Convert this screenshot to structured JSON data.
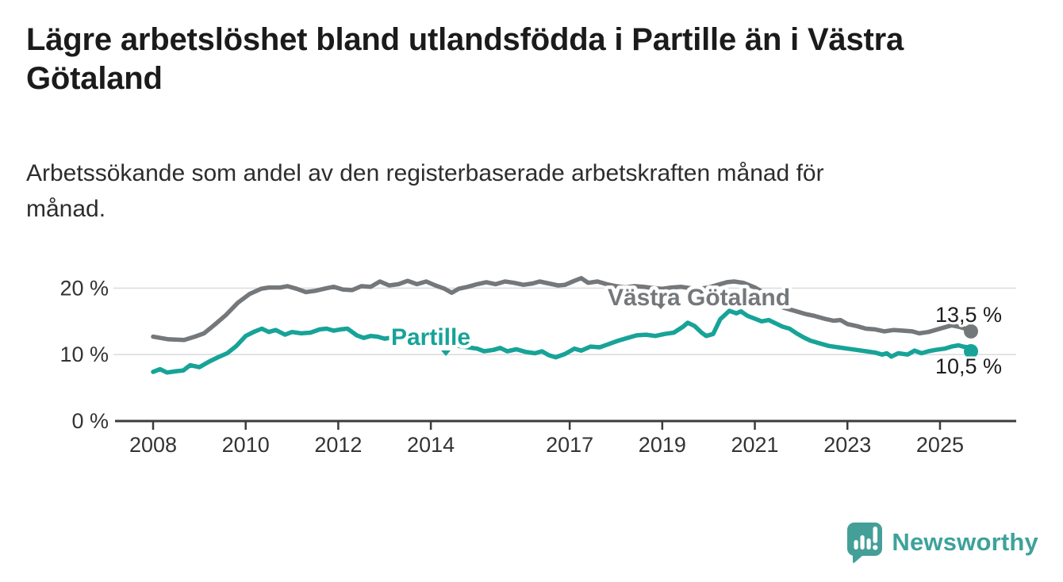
{
  "header": {
    "title": "Lägre arbetslöshet bland utlandsfödda i Partille än i Västra Götaland",
    "subtitle": "Arbetssökande som andel av den registerbaserade arbetskraften månad för månad."
  },
  "chart_data": {
    "type": "line",
    "title": "Lägre arbetslöshet bland utlandsfödda i Partille än i Västra Götaland",
    "subtitle": "Arbetssökande som andel av den registerbaserade arbetskraften månad för månad.",
    "unit": "%",
    "x_range": [
      2008,
      2025.67
    ],
    "ylim": [
      0,
      24
    ],
    "grid_on": true,
    "grid_values": [
      10,
      20
    ],
    "x_ticks": [
      "2008",
      "2010",
      "2012",
      "2014",
      "2017",
      "2019",
      "2021",
      "2023",
      "2025"
    ],
    "x_tick_years": [
      2008,
      2010,
      2012,
      2014,
      2017,
      2019,
      2021,
      2023,
      2025
    ],
    "y_ticks": [
      {
        "label": "20 %",
        "value": 20
      },
      {
        "label": "10 %",
        "value": 10
      },
      {
        "label": "0 %",
        "value": 0
      }
    ],
    "axis_color": "#3b3c3e",
    "grid_color": "#dedede",
    "tick_label_color": "#333333",
    "legend_position": "inline-labels",
    "series": [
      {
        "id": "vastra-gotaland",
        "name": "Västra Götaland",
        "color": "#75787b",
        "end_label": "13,5 %",
        "end_value": 13.5,
        "points": [
          [
            2008.0,
            12.7
          ],
          [
            2008.33,
            12.3
          ],
          [
            2008.67,
            12.2
          ],
          [
            2008.9,
            12.7
          ],
          [
            2009.1,
            13.2
          ],
          [
            2009.33,
            14.5
          ],
          [
            2009.58,
            16.0
          ],
          [
            2009.83,
            17.8
          ],
          [
            2010.08,
            19.1
          ],
          [
            2010.33,
            19.9
          ],
          [
            2010.5,
            20.1
          ],
          [
            2010.75,
            20.1
          ],
          [
            2010.9,
            20.3
          ],
          [
            2011.1,
            19.9
          ],
          [
            2011.3,
            19.4
          ],
          [
            2011.5,
            19.6
          ],
          [
            2011.75,
            20.0
          ],
          [
            2011.9,
            20.2
          ],
          [
            2012.1,
            19.8
          ],
          [
            2012.3,
            19.7
          ],
          [
            2012.5,
            20.3
          ],
          [
            2012.7,
            20.2
          ],
          [
            2012.9,
            21.0
          ],
          [
            2013.1,
            20.4
          ],
          [
            2013.3,
            20.6
          ],
          [
            2013.5,
            21.1
          ],
          [
            2013.7,
            20.6
          ],
          [
            2013.9,
            21.0
          ],
          [
            2014.1,
            20.4
          ],
          [
            2014.3,
            19.9
          ],
          [
            2014.45,
            19.3
          ],
          [
            2014.6,
            19.9
          ],
          [
            2014.8,
            20.2
          ],
          [
            2015.0,
            20.6
          ],
          [
            2015.2,
            20.9
          ],
          [
            2015.4,
            20.6
          ],
          [
            2015.6,
            21.0
          ],
          [
            2015.8,
            20.8
          ],
          [
            2016.0,
            20.5
          ],
          [
            2016.2,
            20.7
          ],
          [
            2016.35,
            21.0
          ],
          [
            2016.55,
            20.7
          ],
          [
            2016.75,
            20.4
          ],
          [
            2016.9,
            20.5
          ],
          [
            2017.1,
            21.1
          ],
          [
            2017.25,
            21.5
          ],
          [
            2017.4,
            20.8
          ],
          [
            2017.6,
            21.0
          ],
          [
            2017.8,
            20.6
          ],
          [
            2018.0,
            20.3
          ],
          [
            2018.2,
            20.1
          ],
          [
            2018.4,
            20.3
          ],
          [
            2018.6,
            20.2
          ],
          [
            2018.8,
            20.0
          ],
          [
            2019.0,
            19.9
          ],
          [
            2019.2,
            20.1
          ],
          [
            2019.4,
            20.2
          ],
          [
            2019.6,
            20.0
          ],
          [
            2019.8,
            19.9
          ],
          [
            2020.0,
            20.1
          ],
          [
            2020.2,
            20.5
          ],
          [
            2020.4,
            20.9
          ],
          [
            2020.55,
            21.0
          ],
          [
            2020.75,
            20.8
          ],
          [
            2021.0,
            20.1
          ],
          [
            2021.2,
            19.3
          ],
          [
            2021.4,
            18.2
          ],
          [
            2021.6,
            17.1
          ],
          [
            2021.75,
            16.8
          ],
          [
            2021.9,
            16.5
          ],
          [
            2022.1,
            16.1
          ],
          [
            2022.3,
            15.8
          ],
          [
            2022.5,
            15.4
          ],
          [
            2022.7,
            15.1
          ],
          [
            2022.85,
            15.2
          ],
          [
            2023.0,
            14.6
          ],
          [
            2023.2,
            14.3
          ],
          [
            2023.4,
            13.9
          ],
          [
            2023.6,
            13.8
          ],
          [
            2023.8,
            13.5
          ],
          [
            2024.0,
            13.7
          ],
          [
            2024.2,
            13.6
          ],
          [
            2024.4,
            13.5
          ],
          [
            2024.55,
            13.2
          ],
          [
            2024.75,
            13.4
          ],
          [
            2024.9,
            13.7
          ],
          [
            2025.1,
            14.1
          ],
          [
            2025.25,
            14.4
          ],
          [
            2025.4,
            14.2
          ],
          [
            2025.55,
            13.9
          ],
          [
            2025.67,
            13.5
          ]
        ]
      },
      {
        "id": "partille",
        "name": "Partille",
        "color": "#17a398",
        "end_label": "10,5 %",
        "end_value": 10.5,
        "points": [
          [
            2008.0,
            7.4
          ],
          [
            2008.15,
            7.8
          ],
          [
            2008.3,
            7.3
          ],
          [
            2008.5,
            7.5
          ],
          [
            2008.65,
            7.6
          ],
          [
            2008.8,
            8.4
          ],
          [
            2009.0,
            8.1
          ],
          [
            2009.2,
            8.9
          ],
          [
            2009.4,
            9.6
          ],
          [
            2009.6,
            10.2
          ],
          [
            2009.8,
            11.3
          ],
          [
            2010.0,
            12.8
          ],
          [
            2010.2,
            13.5
          ],
          [
            2010.35,
            13.9
          ],
          [
            2010.5,
            13.4
          ],
          [
            2010.65,
            13.7
          ],
          [
            2010.85,
            13.0
          ],
          [
            2011.0,
            13.4
          ],
          [
            2011.2,
            13.2
          ],
          [
            2011.4,
            13.3
          ],
          [
            2011.6,
            13.8
          ],
          [
            2011.75,
            13.9
          ],
          [
            2011.9,
            13.6
          ],
          [
            2012.05,
            13.8
          ],
          [
            2012.2,
            13.9
          ],
          [
            2012.4,
            12.9
          ],
          [
            2012.55,
            12.5
          ],
          [
            2012.7,
            12.8
          ],
          [
            2012.85,
            12.7
          ],
          [
            2013.0,
            12.4
          ],
          [
            2013.2,
            12.6
          ],
          [
            2013.4,
            12.4
          ],
          [
            2013.6,
            12.5
          ],
          [
            2013.8,
            12.2
          ],
          [
            2014.0,
            12.0
          ],
          [
            2014.2,
            11.8
          ],
          [
            2014.4,
            11.5
          ],
          [
            2014.6,
            11.3
          ],
          [
            2014.8,
            11.1
          ],
          [
            2015.0,
            10.9
          ],
          [
            2015.15,
            10.5
          ],
          [
            2015.35,
            10.7
          ],
          [
            2015.5,
            11.0
          ],
          [
            2015.65,
            10.5
          ],
          [
            2015.85,
            10.8
          ],
          [
            2016.05,
            10.4
          ],
          [
            2016.25,
            10.2
          ],
          [
            2016.4,
            10.5
          ],
          [
            2016.55,
            9.9
          ],
          [
            2016.7,
            9.6
          ],
          [
            2016.9,
            10.1
          ],
          [
            2017.1,
            10.9
          ],
          [
            2017.25,
            10.6
          ],
          [
            2017.45,
            11.2
          ],
          [
            2017.65,
            11.1
          ],
          [
            2017.85,
            11.6
          ],
          [
            2018.05,
            12.1
          ],
          [
            2018.25,
            12.5
          ],
          [
            2018.45,
            12.9
          ],
          [
            2018.65,
            13.0
          ],
          [
            2018.85,
            12.8
          ],
          [
            2019.05,
            13.1
          ],
          [
            2019.25,
            13.3
          ],
          [
            2019.45,
            14.2
          ],
          [
            2019.55,
            14.8
          ],
          [
            2019.7,
            14.3
          ],
          [
            2019.85,
            13.3
          ],
          [
            2019.95,
            12.8
          ],
          [
            2020.1,
            13.1
          ],
          [
            2020.25,
            15.3
          ],
          [
            2020.45,
            16.6
          ],
          [
            2020.6,
            16.2
          ],
          [
            2020.7,
            16.5
          ],
          [
            2020.85,
            15.8
          ],
          [
            2021.0,
            15.4
          ],
          [
            2021.15,
            15.0
          ],
          [
            2021.3,
            15.2
          ],
          [
            2021.45,
            14.7
          ],
          [
            2021.6,
            14.2
          ],
          [
            2021.75,
            13.9
          ],
          [
            2021.9,
            13.2
          ],
          [
            2022.05,
            12.6
          ],
          [
            2022.2,
            12.1
          ],
          [
            2022.4,
            11.7
          ],
          [
            2022.6,
            11.3
          ],
          [
            2022.8,
            11.1
          ],
          [
            2023.0,
            10.9
          ],
          [
            2023.2,
            10.7
          ],
          [
            2023.4,
            10.5
          ],
          [
            2023.6,
            10.3
          ],
          [
            2023.75,
            10.0
          ],
          [
            2023.85,
            10.2
          ],
          [
            2023.95,
            9.7
          ],
          [
            2024.1,
            10.2
          ],
          [
            2024.3,
            10.0
          ],
          [
            2024.45,
            10.6
          ],
          [
            2024.6,
            10.2
          ],
          [
            2024.75,
            10.5
          ],
          [
            2024.9,
            10.7
          ],
          [
            2025.1,
            10.9
          ],
          [
            2025.25,
            11.2
          ],
          [
            2025.4,
            11.4
          ],
          [
            2025.5,
            11.2
          ],
          [
            2025.6,
            11.1
          ],
          [
            2025.67,
            10.5
          ]
        ]
      }
    ]
  },
  "branding": {
    "logo_text": "Newsworthy",
    "logo_color": "#449f98",
    "logo_text_color": "#3da29a"
  }
}
